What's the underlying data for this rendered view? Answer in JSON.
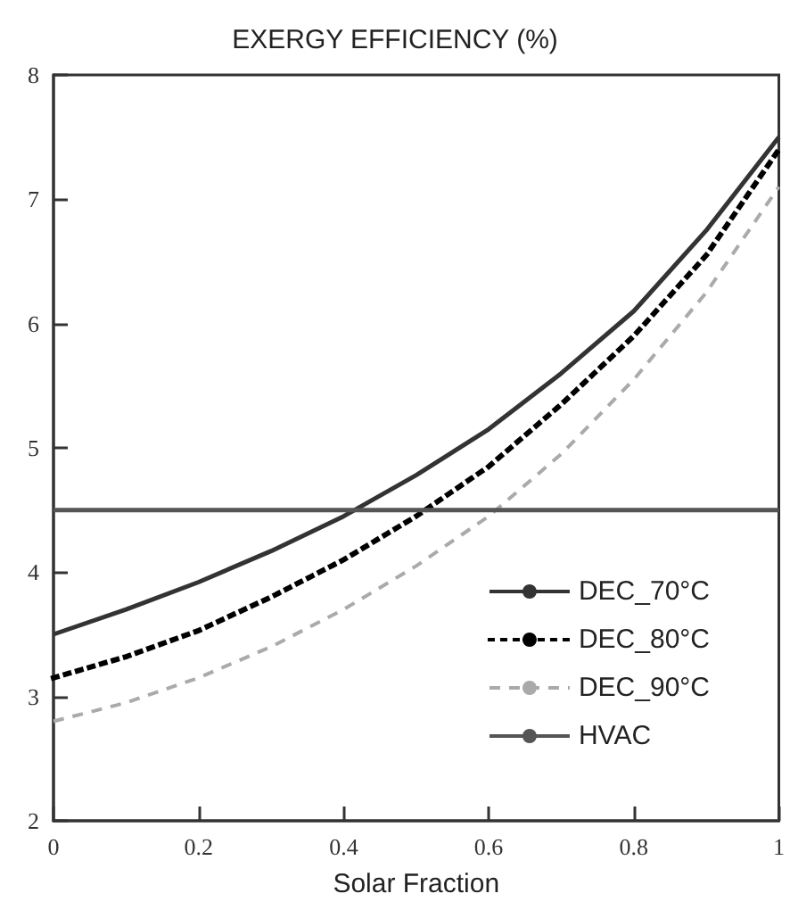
{
  "chart_data": {
    "type": "line",
    "title": "EXERGY EFFICIENCY (%)",
    "xlabel": "Solar Fraction",
    "x": [
      0,
      0.1,
      0.2,
      0.3,
      0.4,
      0.5,
      0.6,
      0.7,
      0.8,
      0.9,
      1
    ],
    "series": [
      {
        "name": "DEC_70°C",
        "color": "#333333",
        "line_style": "solid",
        "values": [
          3.5,
          3.7,
          3.92,
          4.17,
          4.45,
          4.78,
          5.15,
          5.6,
          6.1,
          6.75,
          7.5
        ]
      },
      {
        "name": "DEC_80°C",
        "color": "#000000",
        "line_style": "dotted",
        "values": [
          3.15,
          3.32,
          3.53,
          3.8,
          4.1,
          4.45,
          4.85,
          5.35,
          5.9,
          6.55,
          7.4
        ]
      },
      {
        "name": "DEC_90°C",
        "color": "#aaaaaa",
        "line_style": "dashed",
        "values": [
          2.8,
          2.95,
          3.15,
          3.4,
          3.7,
          4.05,
          4.45,
          4.95,
          5.55,
          6.25,
          7.1
        ]
      },
      {
        "name": "HVAC",
        "color": "#555555",
        "line_style": "solid",
        "x": [
          0,
          1
        ],
        "values": [
          4.5,
          4.5
        ]
      }
    ],
    "xlim": [
      0,
      1
    ],
    "xticks": [
      0,
      0.2,
      0.4,
      0.6,
      0.8,
      1
    ],
    "ylim": [
      2,
      8
    ],
    "yticks": [
      2,
      3,
      4,
      5,
      6,
      7,
      8
    ],
    "grid": false,
    "legend": "bottom right",
    "marker": "none"
  }
}
